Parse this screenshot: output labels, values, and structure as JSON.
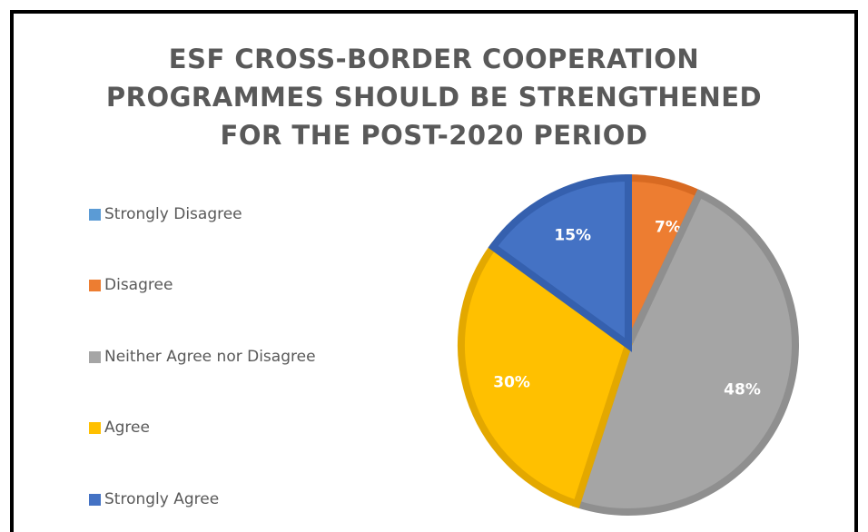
{
  "chart_data": {
    "type": "pie",
    "title": "ESF CROSS-BORDER COOPERATION PROGRAMMES SHOULD BE STRENGTHENED FOR THE POST-2020 PERIOD",
    "title_lines": [
      "ESF CROSS-BORDER COOPERATION",
      "PROGRAMMES SHOULD BE STRENGTHENED",
      "FOR THE POST-2020 PERIOD"
    ],
    "legend_position": "left",
    "slices": [
      {
        "name": "Strongly Disagree",
        "value": 0,
        "label": "0%",
        "color": "#5b9bd5",
        "border": "#4a86bd"
      },
      {
        "name": "Disagree",
        "value": 7,
        "label": "7%",
        "color": "#ed7d31",
        "border": "#d86a22"
      },
      {
        "name": "Neither Agree nor Disagree",
        "value": 48,
        "label": "48%",
        "color": "#a5a5a5",
        "border": "#8f8f8f"
      },
      {
        "name": "Agree",
        "value": 30,
        "label": "30%",
        "color": "#ffc000",
        "border": "#e3a800"
      },
      {
        "name": "Strongly Agree",
        "value": 15,
        "label": "15%",
        "color": "#4472c4",
        "border": "#3560ae"
      }
    ]
  }
}
